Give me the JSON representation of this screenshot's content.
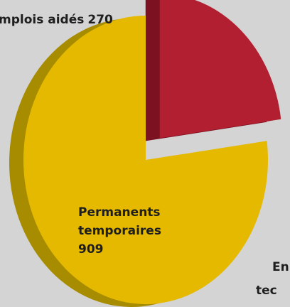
{
  "chart_data": {
    "type": "pie",
    "slices": [
      {
        "label_lines": [
          "mplois aidés"
        ],
        "value": 270,
        "color": "#b21f30",
        "side_color": "#7c1221",
        "explode": true
      },
      {
        "label_lines": [
          "Permanents",
          "temporaires"
        ],
        "value": 909,
        "color": "#e5b900",
        "side_color": "#a88c00",
        "explode": false
      }
    ],
    "annotations": [
      "En",
      "tec"
    ]
  }
}
